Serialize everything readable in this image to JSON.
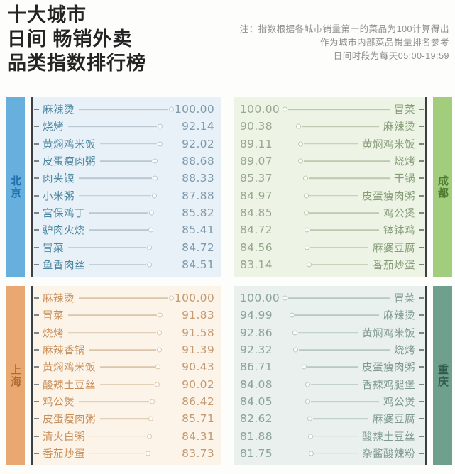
{
  "header": {
    "title_lines": [
      "十大城市",
      "日间 畅销外卖",
      "品类指数排行榜"
    ],
    "note_lines": [
      "注：指数根据各城市销量第一的菜品为100计算得出",
      "作为城市内部菜品销量排名参考",
      "日间时段为每天05:00-19:59"
    ]
  },
  "chart_data": {
    "type": "bar",
    "variant": "horizontal-lollipop-dot-ranking",
    "title": "十大城市 日间 畅销外卖 品类指数排行榜",
    "index_note": "指数根据各城市销量第一的菜品为100计算得出，作为城市内部菜品销量排名参考",
    "time_note": "日间时段为每天05:00-19:59",
    "value_range": [
      80,
      100
    ],
    "panels": [
      {
        "id": "beijing",
        "city": "北京",
        "side": "left",
        "colors": {
          "sidebar": "#67b0de",
          "sidebar_text": "#1e6fae",
          "panel_bg": "#e8f1f8",
          "item_text": "#4e87a2",
          "value_text": "#7f99ab",
          "line": "#b9c8d2"
        },
        "items": [
          {
            "label": "麻辣烫",
            "value": "100.00"
          },
          {
            "label": "烧烤",
            "value": "92.14"
          },
          {
            "label": "黄焖鸡米饭",
            "value": "92.02"
          },
          {
            "label": "皮蛋瘦肉粥",
            "value": "88.68"
          },
          {
            "label": "肉夹馍",
            "value": "88.33"
          },
          {
            "label": "小米粥",
            "value": "87.88"
          },
          {
            "label": "宫保鸡丁",
            "value": "85.82"
          },
          {
            "label": "驴肉火烧",
            "value": "85.41"
          },
          {
            "label": "冒菜",
            "value": "84.72"
          },
          {
            "label": "鱼香肉丝",
            "value": "84.51"
          }
        ]
      },
      {
        "id": "chengdu",
        "city": "成都",
        "side": "right",
        "colors": {
          "sidebar": "#a2cd7d",
          "sidebar_text": "#4f7d35",
          "panel_bg": "#edf4e5",
          "item_text": "#859c76",
          "value_text": "#98a78f",
          "line": "#bcc9ae"
        },
        "items": [
          {
            "label": "冒菜",
            "value": "100.00"
          },
          {
            "label": "麻辣烫",
            "value": "90.38"
          },
          {
            "label": "黄焖鸡米饭",
            "value": "89.11"
          },
          {
            "label": "烧烤",
            "value": "89.07"
          },
          {
            "label": "干锅",
            "value": "85.37"
          },
          {
            "label": "皮蛋瘦肉粥",
            "value": "84.97"
          },
          {
            "label": "鸡公煲",
            "value": "84.85"
          },
          {
            "label": "钵钵鸡",
            "value": "84.72"
          },
          {
            "label": "麻婆豆腐",
            "value": "84.56"
          },
          {
            "label": "番茄炒蛋",
            "value": "83.14"
          }
        ]
      },
      {
        "id": "shanghai",
        "city": "上海",
        "side": "left",
        "colors": {
          "sidebar": "#e9a771",
          "sidebar_text": "#b06a2c",
          "panel_bg": "#fdf4e9",
          "item_text": "#c98e58",
          "value_text": "#c49a73",
          "line": "#dcc6ab"
        },
        "items": [
          {
            "label": "麻辣烫",
            "value": "100.00"
          },
          {
            "label": "冒菜",
            "value": "91.83"
          },
          {
            "label": "烧烤",
            "value": "91.58"
          },
          {
            "label": "麻辣香锅",
            "value": "91.39"
          },
          {
            "label": "黄焖鸡米饭",
            "value": "90.43"
          },
          {
            "label": "酸辣土豆丝",
            "value": "90.02"
          },
          {
            "label": "鸡公煲",
            "value": "86.42"
          },
          {
            "label": "皮蛋瘦肉粥",
            "value": "85.71"
          },
          {
            "label": "清火白粥",
            "value": "84.31"
          },
          {
            "label": "番茄炒蛋",
            "value": "83.73"
          }
        ]
      },
      {
        "id": "chongqing",
        "city": "重庆",
        "side": "right",
        "colors": {
          "sidebar": "#6f9f8d",
          "sidebar_text": "#2f5d4f",
          "panel_bg": "#eaf0ed",
          "item_text": "#7e9a90",
          "value_text": "#8ba39a",
          "line": "#b8c9c2"
        },
        "items": [
          {
            "label": "冒菜",
            "value": "100.00"
          },
          {
            "label": "麻辣烫",
            "value": "94.99"
          },
          {
            "label": "黄焖鸡米饭",
            "value": "92.86"
          },
          {
            "label": "烧烤",
            "value": "92.32"
          },
          {
            "label": "皮蛋瘦肉粥",
            "value": "86.71"
          },
          {
            "label": "香辣鸡腿堡",
            "value": "84.08"
          },
          {
            "label": "鸡公煲",
            "value": "84.05"
          },
          {
            "label": "麻婆豆腐",
            "value": "82.62"
          },
          {
            "label": "酸辣土豆丝",
            "value": "81.88"
          },
          {
            "label": "杂酱酸辣粉",
            "value": "81.75"
          }
        ]
      }
    ]
  }
}
